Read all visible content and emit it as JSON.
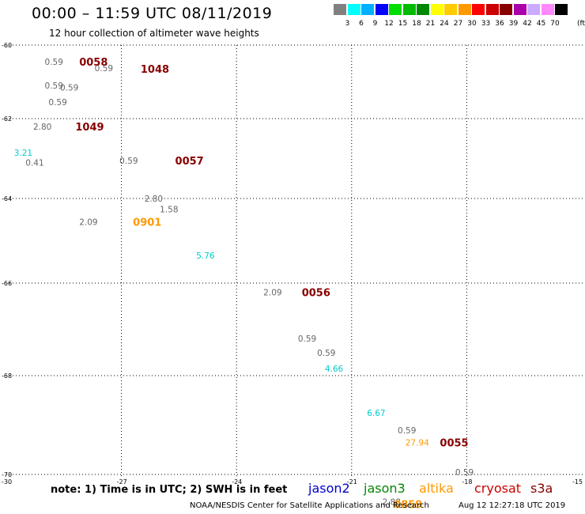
{
  "title": "00:00 – 11:59 UTC 08/11/2019",
  "subtitle": "12 hour collection of altimeter wave heights",
  "colorbar": {
    "colors": [
      "#808080",
      "#00ffff",
      "#00b0ff",
      "#0000ff",
      "#00dd00",
      "#00bb00",
      "#008800",
      "#ffff00",
      "#ffcc00",
      "#ff9900",
      "#ff0000",
      "#cc0000",
      "#880000",
      "#aa00aa",
      "#ccaaff",
      "#ff88ff",
      "#000000"
    ],
    "labels": [
      "3",
      "6",
      "9",
      "12",
      "15",
      "18",
      "21",
      "24",
      "27",
      "30",
      "33",
      "36",
      "39",
      "42",
      "45",
      "70"
    ],
    "unit": "(ft)"
  },
  "axes": {
    "lon_ticks": [
      "-30",
      "-27",
      "-24",
      "-21",
      "-18",
      "-15"
    ],
    "lat_ticks": [
      "-60",
      "-62",
      "-64",
      "-66",
      "-68",
      "-70"
    ]
  },
  "observations": [
    {
      "text": "0.59",
      "lon": -29.0,
      "lat": -60.45,
      "color": "#666666",
      "kind": "swh"
    },
    {
      "text": "0.59",
      "lon": -27.7,
      "lat": -60.62,
      "color": "#666666",
      "kind": "swh"
    },
    {
      "text": "0.59",
      "lon": -29.0,
      "lat": -61.1,
      "color": "#666666",
      "kind": "swh"
    },
    {
      "text": "0.59",
      "lon": -28.6,
      "lat": -61.15,
      "color": "#666666",
      "kind": "swh"
    },
    {
      "text": "0.59",
      "lon": -28.9,
      "lat": -61.55,
      "color": "#666666",
      "kind": "swh"
    },
    {
      "text": "2.80",
      "lon": -29.3,
      "lat": -62.2,
      "color": "#666666",
      "kind": "swh"
    },
    {
      "text": "3.21",
      "lon": -29.8,
      "lat": -62.85,
      "color": "#00cccc",
      "kind": "swh"
    },
    {
      "text": "0.41",
      "lon": -29.5,
      "lat": -63.1,
      "color": "#666666",
      "kind": "swh"
    },
    {
      "text": "0.59",
      "lon": -27.05,
      "lat": -63.05,
      "color": "#666666",
      "kind": "swh"
    },
    {
      "text": "2.80",
      "lon": -26.4,
      "lat": -64.0,
      "color": "#666666",
      "kind": "swh"
    },
    {
      "text": "1.58",
      "lon": -26.0,
      "lat": -64.25,
      "color": "#666666",
      "kind": "swh"
    },
    {
      "text": "2.09",
      "lon": -28.1,
      "lat": -64.55,
      "color": "#666666",
      "kind": "swh"
    },
    {
      "text": "5.76",
      "lon": -25.05,
      "lat": -65.35,
      "color": "#00cccc",
      "kind": "swh"
    },
    {
      "text": "2.09",
      "lon": -23.3,
      "lat": -66.2,
      "color": "#666666",
      "kind": "swh"
    },
    {
      "text": "0.59",
      "lon": -22.4,
      "lat": -67.2,
      "color": "#666666",
      "kind": "swh"
    },
    {
      "text": "0.59",
      "lon": -21.9,
      "lat": -67.5,
      "color": "#666666",
      "kind": "swh"
    },
    {
      "text": "4.66",
      "lon": -21.7,
      "lat": -67.85,
      "color": "#00cccc",
      "kind": "swh"
    },
    {
      "text": "6.67",
      "lon": -20.6,
      "lat": -68.75,
      "color": "#00cccc",
      "kind": "swh"
    },
    {
      "text": "0.59",
      "lon": -19.8,
      "lat": -69.1,
      "color": "#666666",
      "kind": "swh"
    },
    {
      "text": "27.94",
      "lon": -19.6,
      "lat": -69.35,
      "color": "#ff9900",
      "kind": "swh"
    },
    {
      "text": "0.59",
      "lon": -18.3,
      "lat": -69.95,
      "color": "#666666",
      "kind": "swh"
    },
    {
      "text": "2.88",
      "lon": -20.2,
      "lat": -70.55,
      "color": "#666666",
      "kind": "swh"
    }
  ],
  "time_labels": [
    {
      "text": "0058",
      "lon": -28.1,
      "lat": -60.45,
      "color": "#880000"
    },
    {
      "text": "1048",
      "lon": -26.5,
      "lat": -60.65,
      "color": "#880000"
    },
    {
      "text": "1049",
      "lon": -28.2,
      "lat": -62.2,
      "color": "#880000"
    },
    {
      "text": "0057",
      "lon": -25.6,
      "lat": -63.05,
      "color": "#880000"
    },
    {
      "text": "0901",
      "lon": -26.7,
      "lat": -64.55,
      "color": "#ff9900"
    },
    {
      "text": "0056",
      "lon": -22.3,
      "lat": -66.2,
      "color": "#880000"
    },
    {
      "text": "0055",
      "lon": -18.7,
      "lat": -69.35,
      "color": "#880000"
    },
    {
      "text": "0859",
      "lon": -19.9,
      "lat": -70.6,
      "color": "#ff9900"
    }
  ],
  "note": "note: 1) Time is in UTC; 2) SWH is in feet",
  "legend": [
    {
      "name": "jason2",
      "color": "#0000cc"
    },
    {
      "name": "jason3",
      "color": "#008800"
    },
    {
      "name": "altika",
      "color": "#ff9900"
    },
    {
      "name": "cryosat",
      "color": "#cc0000"
    },
    {
      "name": "s3a",
      "color": "#880000"
    }
  ],
  "credit": "NOAA/NESDIS Center for Satellite Applications and Research",
  "timestamp": "Aug 12 12:27:18 UTC 2019"
}
